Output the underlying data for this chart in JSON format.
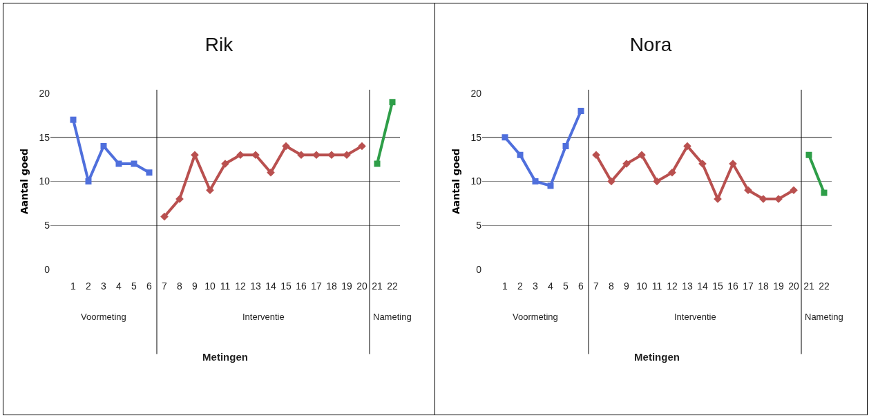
{
  "chart_data": [
    {
      "type": "line",
      "title": "Rik",
      "xlabel": "Metingen",
      "ylabel": "Aantal goed",
      "x": [
        1,
        2,
        3,
        4,
        5,
        6,
        7,
        8,
        9,
        10,
        11,
        12,
        13,
        14,
        15,
        16,
        17,
        18,
        19,
        20,
        21,
        22
      ],
      "series": [
        {
          "color": "#4f6fdc",
          "marker": "square",
          "values": [
            17,
            10,
            14,
            12,
            12,
            11,
            null,
            null,
            null,
            null,
            null,
            null,
            null,
            null,
            null,
            null,
            null,
            null,
            null,
            null,
            null,
            null
          ]
        },
        {
          "color": "#b9504f",
          "marker": "diamond",
          "values": [
            null,
            null,
            null,
            null,
            null,
            null,
            6,
            8,
            13,
            9,
            12,
            13,
            13,
            11,
            14,
            13,
            13,
            13,
            13,
            14,
            null,
            null
          ]
        },
        {
          "color": "#2e9e48",
          "marker": "square",
          "values": [
            null,
            null,
            null,
            null,
            null,
            null,
            null,
            null,
            null,
            null,
            null,
            null,
            null,
            null,
            null,
            null,
            null,
            null,
            null,
            null,
            12,
            19
          ]
        }
      ],
      "xlim": [
        -0.5,
        22.5
      ],
      "xticks": [
        1,
        2,
        3,
        4,
        5,
        6,
        7,
        8,
        9,
        10,
        11,
        12,
        13,
        14,
        15,
        16,
        17,
        18,
        19,
        20,
        21,
        22
      ],
      "ylim": [
        0,
        20
      ],
      "yticks": [
        0,
        5,
        10,
        15,
        20
      ],
      "grid": "y",
      "ref_lines": [
        {
          "axis": "x",
          "value": 6.5,
          "color": "#000000"
        },
        {
          "axis": "x",
          "value": 20.5,
          "color": "#000000"
        }
      ],
      "annotations": [
        "Voormeting",
        "Interventie",
        "Nameting"
      ]
    },
    {
      "type": "line",
      "title": "Nora",
      "xlabel": "Metingen",
      "ylabel": "Aantal goed",
      "x": [
        1,
        2,
        3,
        4,
        5,
        6,
        7,
        8,
        9,
        10,
        11,
        12,
        13,
        14,
        15,
        16,
        17,
        18,
        19,
        20,
        21,
        22
      ],
      "series": [
        {
          "color": "#4f6fdc",
          "marker": "square",
          "values": [
            15,
            13,
            10,
            9.5,
            14,
            18,
            null,
            null,
            null,
            null,
            null,
            null,
            null,
            null,
            null,
            null,
            null,
            null,
            null,
            null,
            null,
            null
          ]
        },
        {
          "color": "#b9504f",
          "marker": "diamond",
          "values": [
            null,
            null,
            null,
            null,
            null,
            null,
            13,
            10,
            12,
            13,
            10,
            11,
            14,
            12,
            8,
            12,
            9,
            8,
            8,
            9,
            null,
            null
          ]
        },
        {
          "color": "#2e9e48",
          "marker": "square",
          "values": [
            null,
            null,
            null,
            null,
            null,
            null,
            null,
            null,
            null,
            null,
            null,
            null,
            null,
            null,
            null,
            null,
            null,
            null,
            null,
            null,
            13,
            8.7
          ]
        }
      ],
      "xlim": [
        -0.5,
        22.5
      ],
      "xticks": [
        1,
        2,
        3,
        4,
        5,
        6,
        7,
        8,
        9,
        10,
        11,
        12,
        13,
        14,
        15,
        16,
        17,
        18,
        19,
        20,
        21,
        22
      ],
      "ylim": [
        0,
        20
      ],
      "yticks": [
        0,
        5,
        10,
        15,
        20
      ],
      "grid": "y",
      "ref_lines": [
        {
          "axis": "x",
          "value": 6.5,
          "color": "#000000"
        },
        {
          "axis": "x",
          "value": 20.5,
          "color": "#000000"
        }
      ],
      "annotations": [
        "Voormeting",
        "Interventie",
        "Nameting"
      ]
    }
  ]
}
